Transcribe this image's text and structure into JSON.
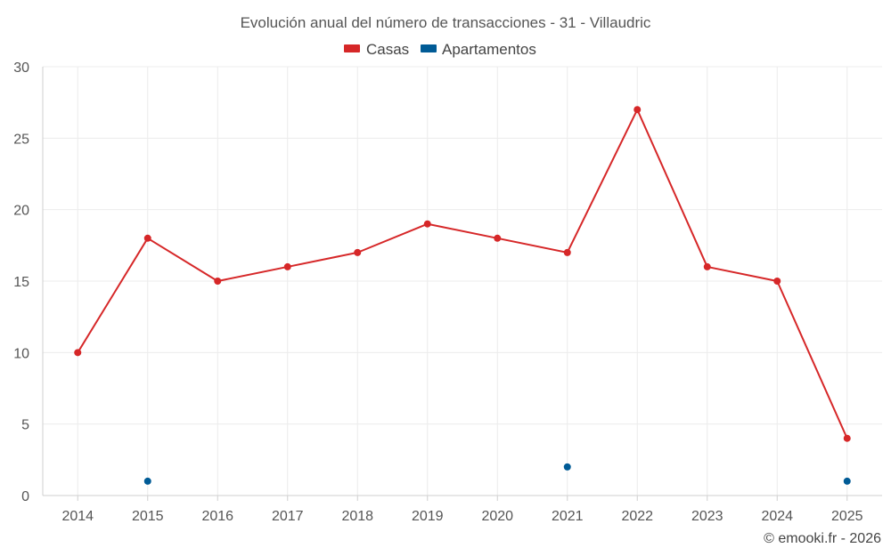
{
  "chart_data": {
    "type": "line",
    "title": "Evolución anual del número de transacciones - 31 - Villaudric",
    "categories": [
      "2014",
      "2015",
      "2016",
      "2017",
      "2018",
      "2019",
      "2020",
      "2021",
      "2022",
      "2023",
      "2024",
      "2025"
    ],
    "ylim": [
      0,
      30
    ],
    "yticks": [
      0,
      5,
      10,
      15,
      20,
      25,
      30
    ],
    "ytick_labels": [
      "0",
      "5",
      "10",
      "15",
      "20",
      "25",
      "30"
    ],
    "grid": true,
    "legend_position": "top-center",
    "series": [
      {
        "name": "Casas",
        "color": "#d62728",
        "mode": "lines+markers",
        "values": [
          10,
          18,
          15,
          16,
          17,
          19,
          18,
          17,
          27,
          16,
          15,
          4
        ]
      },
      {
        "name": "Apartamentos",
        "color": "#005b96",
        "mode": "markers",
        "values": [
          null,
          1,
          null,
          null,
          null,
          null,
          null,
          2,
          null,
          null,
          null,
          1
        ]
      }
    ],
    "credit": "© emooki.fr - 2026"
  }
}
